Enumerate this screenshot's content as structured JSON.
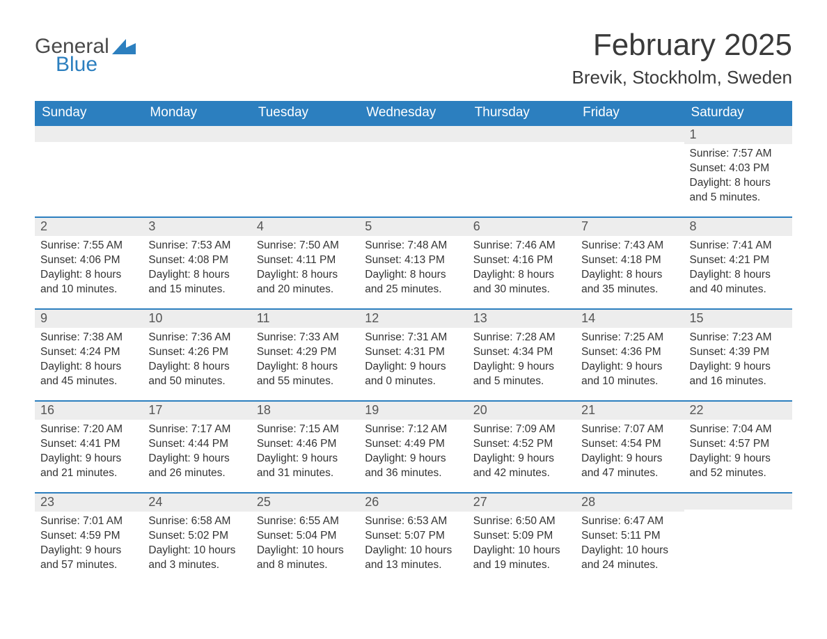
{
  "brand": {
    "part1": "General",
    "part2": "Blue"
  },
  "title": "February 2025",
  "location": "Brevik, Stockholm, Sweden",
  "colors": {
    "header_bg": "#2c7fbf",
    "header_text": "#ffffff",
    "daybar_bg": "#ededed",
    "daybar_border": "#2c7fbf",
    "body_text": "#333333",
    "background": "#ffffff"
  },
  "weekdays": [
    "Sunday",
    "Monday",
    "Tuesday",
    "Wednesday",
    "Thursday",
    "Friday",
    "Saturday"
  ],
  "weeks": [
    [
      {
        "day": "",
        "lines": []
      },
      {
        "day": "",
        "lines": []
      },
      {
        "day": "",
        "lines": []
      },
      {
        "day": "",
        "lines": []
      },
      {
        "day": "",
        "lines": []
      },
      {
        "day": "",
        "lines": []
      },
      {
        "day": "1",
        "lines": [
          "Sunrise: 7:57 AM",
          "Sunset: 4:03 PM",
          "Daylight: 8 hours and 5 minutes."
        ]
      }
    ],
    [
      {
        "day": "2",
        "lines": [
          "Sunrise: 7:55 AM",
          "Sunset: 4:06 PM",
          "Daylight: 8 hours and 10 minutes."
        ]
      },
      {
        "day": "3",
        "lines": [
          "Sunrise: 7:53 AM",
          "Sunset: 4:08 PM",
          "Daylight: 8 hours and 15 minutes."
        ]
      },
      {
        "day": "4",
        "lines": [
          "Sunrise: 7:50 AM",
          "Sunset: 4:11 PM",
          "Daylight: 8 hours and 20 minutes."
        ]
      },
      {
        "day": "5",
        "lines": [
          "Sunrise: 7:48 AM",
          "Sunset: 4:13 PM",
          "Daylight: 8 hours and 25 minutes."
        ]
      },
      {
        "day": "6",
        "lines": [
          "Sunrise: 7:46 AM",
          "Sunset: 4:16 PM",
          "Daylight: 8 hours and 30 minutes."
        ]
      },
      {
        "day": "7",
        "lines": [
          "Sunrise: 7:43 AM",
          "Sunset: 4:18 PM",
          "Daylight: 8 hours and 35 minutes."
        ]
      },
      {
        "day": "8",
        "lines": [
          "Sunrise: 7:41 AM",
          "Sunset: 4:21 PM",
          "Daylight: 8 hours and 40 minutes."
        ]
      }
    ],
    [
      {
        "day": "9",
        "lines": [
          "Sunrise: 7:38 AM",
          "Sunset: 4:24 PM",
          "Daylight: 8 hours and 45 minutes."
        ]
      },
      {
        "day": "10",
        "lines": [
          "Sunrise: 7:36 AM",
          "Sunset: 4:26 PM",
          "Daylight: 8 hours and 50 minutes."
        ]
      },
      {
        "day": "11",
        "lines": [
          "Sunrise: 7:33 AM",
          "Sunset: 4:29 PM",
          "Daylight: 8 hours and 55 minutes."
        ]
      },
      {
        "day": "12",
        "lines": [
          "Sunrise: 7:31 AM",
          "Sunset: 4:31 PM",
          "Daylight: 9 hours and 0 minutes."
        ]
      },
      {
        "day": "13",
        "lines": [
          "Sunrise: 7:28 AM",
          "Sunset: 4:34 PM",
          "Daylight: 9 hours and 5 minutes."
        ]
      },
      {
        "day": "14",
        "lines": [
          "Sunrise: 7:25 AM",
          "Sunset: 4:36 PM",
          "Daylight: 9 hours and 10 minutes."
        ]
      },
      {
        "day": "15",
        "lines": [
          "Sunrise: 7:23 AM",
          "Sunset: 4:39 PM",
          "Daylight: 9 hours and 16 minutes."
        ]
      }
    ],
    [
      {
        "day": "16",
        "lines": [
          "Sunrise: 7:20 AM",
          "Sunset: 4:41 PM",
          "Daylight: 9 hours and 21 minutes."
        ]
      },
      {
        "day": "17",
        "lines": [
          "Sunrise: 7:17 AM",
          "Sunset: 4:44 PM",
          "Daylight: 9 hours and 26 minutes."
        ]
      },
      {
        "day": "18",
        "lines": [
          "Sunrise: 7:15 AM",
          "Sunset: 4:46 PM",
          "Daylight: 9 hours and 31 minutes."
        ]
      },
      {
        "day": "19",
        "lines": [
          "Sunrise: 7:12 AM",
          "Sunset: 4:49 PM",
          "Daylight: 9 hours and 36 minutes."
        ]
      },
      {
        "day": "20",
        "lines": [
          "Sunrise: 7:09 AM",
          "Sunset: 4:52 PM",
          "Daylight: 9 hours and 42 minutes."
        ]
      },
      {
        "day": "21",
        "lines": [
          "Sunrise: 7:07 AM",
          "Sunset: 4:54 PM",
          "Daylight: 9 hours and 47 minutes."
        ]
      },
      {
        "day": "22",
        "lines": [
          "Sunrise: 7:04 AM",
          "Sunset: 4:57 PM",
          "Daylight: 9 hours and 52 minutes."
        ]
      }
    ],
    [
      {
        "day": "23",
        "lines": [
          "Sunrise: 7:01 AM",
          "Sunset: 4:59 PM",
          "Daylight: 9 hours and 57 minutes."
        ]
      },
      {
        "day": "24",
        "lines": [
          "Sunrise: 6:58 AM",
          "Sunset: 5:02 PM",
          "Daylight: 10 hours and 3 minutes."
        ]
      },
      {
        "day": "25",
        "lines": [
          "Sunrise: 6:55 AM",
          "Sunset: 5:04 PM",
          "Daylight: 10 hours and 8 minutes."
        ]
      },
      {
        "day": "26",
        "lines": [
          "Sunrise: 6:53 AM",
          "Sunset: 5:07 PM",
          "Daylight: 10 hours and 13 minutes."
        ]
      },
      {
        "day": "27",
        "lines": [
          "Sunrise: 6:50 AM",
          "Sunset: 5:09 PM",
          "Daylight: 10 hours and 19 minutes."
        ]
      },
      {
        "day": "28",
        "lines": [
          "Sunrise: 6:47 AM",
          "Sunset: 5:11 PM",
          "Daylight: 10 hours and 24 minutes."
        ]
      },
      {
        "day": "",
        "lines": []
      }
    ]
  ]
}
